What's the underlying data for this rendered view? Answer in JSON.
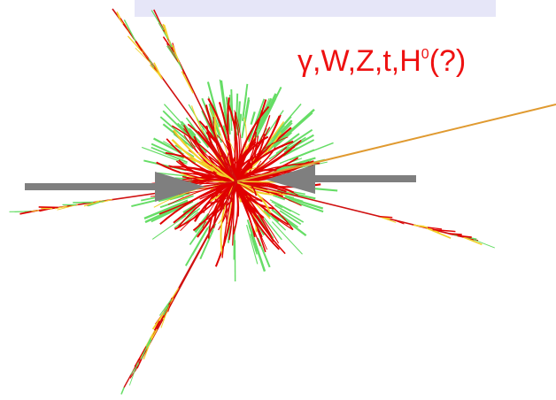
{
  "label": {
    "main": "γ,W,Z,t,H",
    "superscript": "0",
    "suffix": "(?)"
  },
  "colors": {
    "banner": "#e6e6f8",
    "label": "#ee1111",
    "beam": "#7f7f7f",
    "track_red": "#e00000",
    "track_green": "#66dd66",
    "track_yellow": "#f2d22a",
    "decay_line": "#e09a30"
  },
  "icons": [
    "beam-left-arrow",
    "beam-right-arrow",
    "particle-collision-burst"
  ]
}
